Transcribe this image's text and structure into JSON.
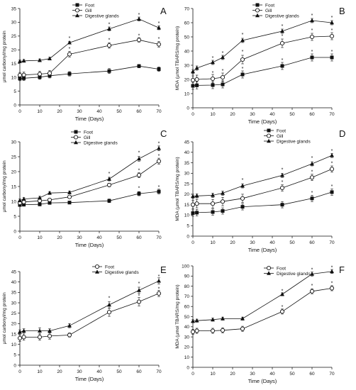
{
  "chart_data": [
    {
      "panel_letter": "A",
      "type": "line",
      "xlabel": "Time (Days)",
      "ylabel": "µmol carbonyl/mg protein",
      "xlim": [
        0,
        70
      ],
      "ylim": [
        0,
        35
      ],
      "xticks": [
        0,
        10,
        20,
        30,
        40,
        50,
        60,
        70
      ],
      "yticks": [
        0,
        5,
        10,
        15,
        20,
        25,
        30,
        35
      ],
      "x": [
        0,
        2,
        10,
        15,
        25,
        45,
        60,
        70
      ],
      "legend_position": "top-left",
      "series": [
        {
          "name": "Foot",
          "marker": "square",
          "values": [
            9.6,
            9.7,
            10.1,
            10.6,
            11.3,
            12.3,
            14.1,
            13.0
          ],
          "errors": [
            0.8,
            0.8,
            0.8,
            0.8,
            0.8,
            0.9,
            0.6,
            0.8
          ]
        },
        {
          "name": "Gill",
          "marker": "circle-open",
          "values": [
            10.8,
            10.9,
            11.2,
            11.5,
            18.4,
            21.6,
            23.6,
            22.0
          ],
          "errors": [
            1.0,
            1.0,
            1.0,
            1.0,
            1.0,
            1.0,
            0.8,
            1.0
          ]
        },
        {
          "name": "Digestive glands",
          "marker": "triangle",
          "values": [
            15.8,
            16.0,
            16.2,
            16.8,
            22.6,
            27.6,
            31.2,
            28.0
          ],
          "errors": [
            0.5,
            0.5,
            0.5,
            0.5,
            0.5,
            0.7,
            0.7,
            0.7
          ]
        }
      ],
      "significant": [
        {
          "x": 25,
          "y": 24.4
        },
        {
          "x": 45,
          "y": 29.5
        },
        {
          "x": 60,
          "y": 33.0
        },
        {
          "x": 70,
          "y": 29.8
        },
        {
          "x": 25,
          "y": 20.6
        },
        {
          "x": 45,
          "y": 23.8
        },
        {
          "x": 60,
          "y": 25.4
        },
        {
          "x": 70,
          "y": 24.2
        }
      ]
    },
    {
      "panel_letter": "B",
      "type": "line",
      "xlabel": "Time (Days)",
      "ylabel": "MDA (µmol TBARS/mg protein)",
      "xlim": [
        0,
        70
      ],
      "ylim": [
        0,
        70
      ],
      "xticks": [
        0,
        10,
        20,
        30,
        40,
        50,
        60,
        70
      ],
      "yticks": [
        0,
        10,
        20,
        30,
        40,
        50,
        60,
        70
      ],
      "x": [
        0,
        2,
        10,
        15,
        25,
        45,
        60,
        70
      ],
      "legend_position": "top-left",
      "series": [
        {
          "name": "Foot",
          "marker": "square",
          "values": [
            15.5,
            15.8,
            16.0,
            16.5,
            23.5,
            29.5,
            35.5,
            35.5
          ],
          "errors": [
            2.5,
            2.5,
            2.5,
            2.5,
            2.5,
            2.5,
            2.5,
            2.5
          ]
        },
        {
          "name": "Gill",
          "marker": "circle-open",
          "values": [
            19.5,
            20.0,
            20.5,
            21.5,
            34.0,
            45.5,
            50.0,
            50.5
          ],
          "errors": [
            3.0,
            3.0,
            3.0,
            3.0,
            3.0,
            3.0,
            2.5,
            2.5
          ]
        },
        {
          "name": "Digestive glands",
          "marker": "triangle",
          "values": [
            25.5,
            28.0,
            32.0,
            35.5,
            47.5,
            54.0,
            61.5,
            60.0
          ],
          "errors": [
            1.5,
            1.5,
            1.5,
            1.5,
            1.5,
            1.5,
            1.5,
            1.5
          ]
        }
      ],
      "significant": [
        {
          "x": 10,
          "y": 35.5
        },
        {
          "x": 15,
          "y": 39.0
        },
        {
          "x": 25,
          "y": 52.0
        },
        {
          "x": 45,
          "y": 58.0
        },
        {
          "x": 60,
          "y": 65.5
        },
        {
          "x": 70,
          "y": 64.0
        },
        {
          "x": 10,
          "y": 25.0
        },
        {
          "x": 15,
          "y": 26.5
        },
        {
          "x": 25,
          "y": 40.0
        },
        {
          "x": 45,
          "y": 51.0
        },
        {
          "x": 60,
          "y": 55.0
        },
        {
          "x": 70,
          "y": 55.0
        },
        {
          "x": 25,
          "y": 28.0
        },
        {
          "x": 45,
          "y": 34.0
        },
        {
          "x": 60,
          "y": 40.0
        },
        {
          "x": 70,
          "y": 40.0
        }
      ]
    },
    {
      "panel_letter": "C",
      "type": "line",
      "xlabel": "Time (Days)",
      "ylabel": "µmol carbonyl/mg protein",
      "xlim": [
        0,
        70
      ],
      "ylim": [
        0,
        30
      ],
      "xticks": [
        0,
        10,
        20,
        30,
        40,
        50,
        60,
        70
      ],
      "yticks": [
        0,
        5,
        10,
        15,
        20,
        25,
        30
      ],
      "x": [
        0,
        2,
        10,
        15,
        25,
        45,
        60,
        70
      ],
      "legend_position": "top-left",
      "series": [
        {
          "name": "Foot",
          "marker": "square",
          "values": [
            8.8,
            8.9,
            9.0,
            9.5,
            9.6,
            10.2,
            12.6,
            13.3
          ],
          "errors": [
            0.5,
            0.5,
            0.5,
            0.5,
            0.5,
            0.6,
            0.7,
            0.8
          ]
        },
        {
          "name": "Gill",
          "marker": "circle-open",
          "values": [
            9.5,
            9.8,
            10.2,
            10.5,
            11.5,
            15.5,
            18.8,
            23.5
          ],
          "errors": [
            0.5,
            0.5,
            0.5,
            0.5,
            0.5,
            0.6,
            0.8,
            1.0
          ]
        },
        {
          "name": "Digestive glands",
          "marker": "triangle",
          "values": [
            10.3,
            10.8,
            11.2,
            12.8,
            13.0,
            17.5,
            24.3,
            27.8
          ],
          "errors": [
            0.5,
            0.5,
            0.5,
            0.5,
            0.5,
            0.6,
            0.8,
            0.8
          ]
        }
      ],
      "significant": [
        {
          "x": 45,
          "y": 19.5
        },
        {
          "x": 60,
          "y": 26.5
        },
        {
          "x": 70,
          "y": 29.6
        },
        {
          "x": 45,
          "y": 16.9
        },
        {
          "x": 60,
          "y": 20.6
        },
        {
          "x": 70,
          "y": 25.5
        },
        {
          "x": 60,
          "y": 14.6
        },
        {
          "x": 70,
          "y": 15.0
        }
      ]
    },
    {
      "panel_letter": "D",
      "type": "line",
      "xlabel": "Time (Days)",
      "ylabel": "MDA (µmol TBARS/mg protein)",
      "xlim": [
        0,
        70
      ],
      "ylim": [
        0,
        45
      ],
      "xticks": [
        0,
        10,
        20,
        30,
        40,
        50,
        60,
        70
      ],
      "yticks": [
        0,
        5,
        10,
        15,
        20,
        25,
        30,
        35,
        40,
        45
      ],
      "x": [
        0,
        2,
        10,
        15,
        25,
        45,
        60,
        70
      ],
      "legend_position": "top-right",
      "series": [
        {
          "name": "Foot",
          "marker": "square",
          "values": [
            11.0,
            11.2,
            11.5,
            12.0,
            14.0,
            15.0,
            18.0,
            21.0
          ],
          "errors": [
            1.5,
            1.5,
            1.5,
            1.5,
            1.5,
            1.5,
            1.5,
            1.5
          ]
        },
        {
          "name": "Gill",
          "marker": "circle-open",
          "values": [
            15.0,
            15.5,
            15.5,
            16.5,
            18.0,
            23.0,
            28.0,
            32.0
          ],
          "errors": [
            2.0,
            2.0,
            2.0,
            2.0,
            2.0,
            1.5,
            1.5,
            1.5
          ]
        },
        {
          "name": "Digestive glands",
          "marker": "triangle",
          "values": [
            19.0,
            19.2,
            19.5,
            20.5,
            24.0,
            29.0,
            34.5,
            38.5
          ],
          "errors": [
            1.0,
            1.0,
            1.0,
            1.0,
            1.0,
            1.0,
            1.0,
            1.0
          ]
        }
      ],
      "significant": [
        {
          "x": 25,
          "y": 27.0
        },
        {
          "x": 45,
          "y": 32.0
        },
        {
          "x": 60,
          "y": 37.5
        },
        {
          "x": 70,
          "y": 41.0
        },
        {
          "x": 45,
          "y": 26.0
        },
        {
          "x": 60,
          "y": 31.0
        },
        {
          "x": 70,
          "y": 35.0
        },
        {
          "x": 60,
          "y": 21.0
        },
        {
          "x": 70,
          "y": 24.0
        }
      ]
    },
    {
      "panel_letter": "E",
      "type": "line",
      "xlabel": "Time (Days)",
      "ylabel": "µmol carbonyl/mg protein",
      "xlim": [
        0,
        70
      ],
      "ylim": [
        0,
        45
      ],
      "xticks": [
        0,
        10,
        20,
        30,
        40,
        50,
        60,
        70
      ],
      "yticks": [
        0,
        5,
        10,
        15,
        20,
        25,
        30,
        35,
        40,
        45
      ],
      "x": [
        0,
        2,
        10,
        15,
        25,
        45,
        60,
        70
      ],
      "legend_position": "top-right",
      "series": [
        {
          "name": "Foot",
          "marker": "circle-open",
          "values": [
            13.0,
            13.5,
            13.5,
            14.0,
            14.5,
            25.5,
            30.5,
            34.5
          ],
          "errors": [
            1.5,
            1.5,
            1.5,
            1.5,
            1.0,
            2.0,
            2.0,
            1.5
          ]
        },
        {
          "name": "Digestive glands",
          "marker": "triangle",
          "values": [
            16.0,
            16.5,
            16.5,
            16.5,
            19.0,
            29.0,
            36.0,
            40.5
          ],
          "errors": [
            1.0,
            1.0,
            1.5,
            1.0,
            1.0,
            1.5,
            1.5,
            1.5
          ]
        }
      ],
      "significant": [
        {
          "x": 45,
          "y": 32.5
        },
        {
          "x": 60,
          "y": 39.5
        },
        {
          "x": 70,
          "y": 43.0
        },
        {
          "x": 45,
          "y": 28.5
        },
        {
          "x": 60,
          "y": 33.5
        },
        {
          "x": 70,
          "y": 37.0
        }
      ]
    },
    {
      "panel_letter": "F",
      "type": "line",
      "xlabel": "Time (Days)",
      "ylabel": "MDA (µmol TBARS/mg protein)",
      "xlim": [
        0,
        70
      ],
      "ylim": [
        0,
        100
      ],
      "xticks": [
        0,
        10,
        20,
        30,
        40,
        50,
        60,
        70
      ],
      "yticks": [
        0,
        10,
        20,
        30,
        40,
        50,
        60,
        70,
        80,
        90,
        100
      ],
      "x": [
        0,
        2,
        10,
        15,
        25,
        45,
        60,
        70
      ],
      "legend_position": "top-right",
      "series": [
        {
          "name": "Foot",
          "marker": "circle-open",
          "values": [
            35.0,
            36.0,
            36.0,
            36.5,
            38.0,
            55.0,
            75.0,
            78.0
          ],
          "errors": [
            2.5,
            2.5,
            2.5,
            2.5,
            2.5,
            2.5,
            2.5,
            2.5
          ]
        },
        {
          "name": "Digestive glands",
          "marker": "triangle",
          "values": [
            45.5,
            46.0,
            47.0,
            48.0,
            48.0,
            72.0,
            92.0,
            94.5
          ],
          "errors": [
            1.5,
            1.5,
            1.5,
            1.5,
            1.5,
            1.5,
            2.0,
            2.0
          ]
        }
      ],
      "significant": [
        {
          "x": 45,
          "y": 76.0
        },
        {
          "x": 60,
          "y": 97.0
        },
        {
          "x": 70,
          "y": 99.0
        },
        {
          "x": 45,
          "y": 60.0
        },
        {
          "x": 60,
          "y": 81.0
        },
        {
          "x": 70,
          "y": 83.5
        }
      ]
    }
  ]
}
